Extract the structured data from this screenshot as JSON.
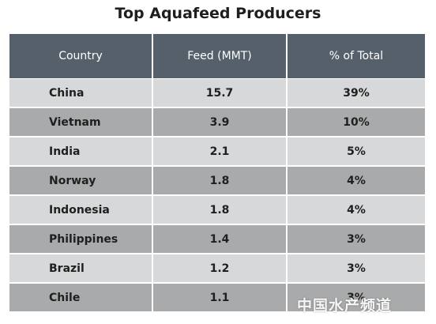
{
  "chart_data": {
    "type": "table",
    "title": "Top Aquafeed Producers",
    "columns": [
      "Country",
      "Feed (MMT)",
      "% of Total"
    ],
    "rows": [
      {
        "country": "China",
        "feed": "15.7",
        "pct": "39%"
      },
      {
        "country": "Vietnam",
        "feed": "3.9",
        "pct": "10%"
      },
      {
        "country": "India",
        "feed": "2.1",
        "pct": "5%"
      },
      {
        "country": "Norway",
        "feed": "1.8",
        "pct": "4%"
      },
      {
        "country": "Indonesia",
        "feed": "1.8",
        "pct": "4%"
      },
      {
        "country": "Philippines",
        "feed": "1.4",
        "pct": "3%"
      },
      {
        "country": "Brazil",
        "feed": "1.2",
        "pct": "3%"
      },
      {
        "country": "Chile",
        "feed": "1.1",
        "pct": "3%"
      }
    ],
    "colors": {
      "header_bg": "#56606b",
      "row_light": "#d7d8d9",
      "row_dark": "#a9aaab"
    }
  },
  "watermark": {
    "text": "中国水产频道"
  }
}
